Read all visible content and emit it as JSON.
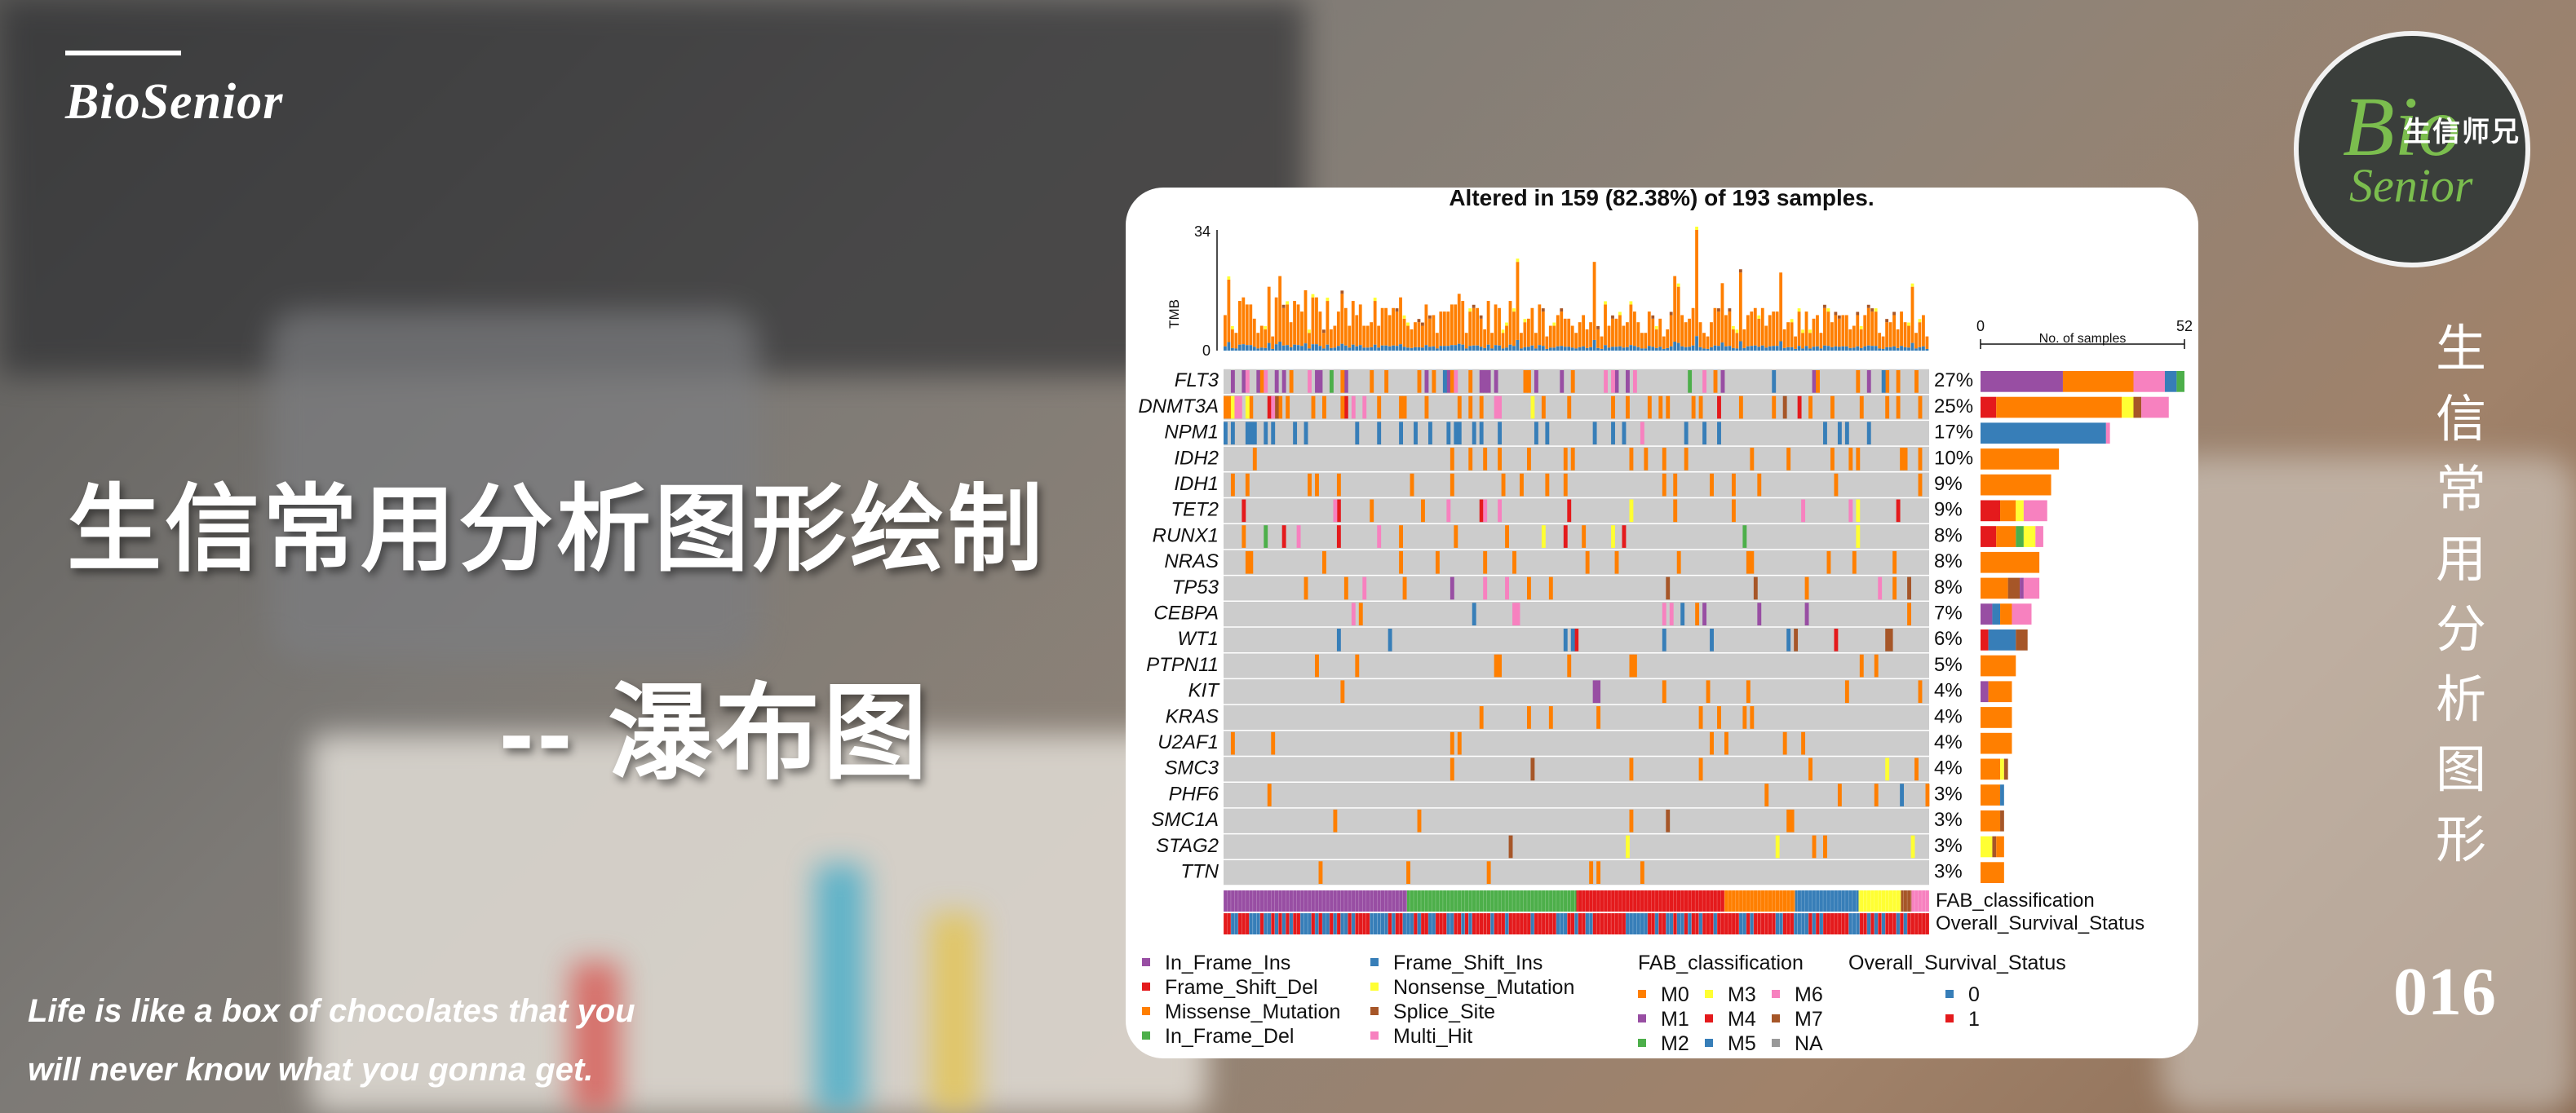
{
  "brand": {
    "name": "BioSenior"
  },
  "main_title": "生信常用分析图形绘制",
  "sub_title": "-- 瀑布图",
  "quote": {
    "line1": "Life is like a box of chocolates that you",
    "line2": "will never know what you gonna get."
  },
  "logo": {
    "bio": "Bio",
    "chinese": "生信师兄",
    "senior": "Senior"
  },
  "vertical_title": [
    "生",
    "信",
    "常",
    "用",
    "分",
    "析",
    "图",
    "形"
  ],
  "episode": "016",
  "colors": {
    "In_Frame_Ins": "#984ea3",
    "Frame_Shift_Del": "#e41a1c",
    "Missense_Mutation": "#ff7f00",
    "In_Frame_Del": "#4daf4a",
    "Frame_Shift_Ins": "#377eb8",
    "Nonsense_Mutation": "#ffff33",
    "Splice_Site": "#a65628",
    "Multi_Hit": "#f781bf",
    "M0": "#ff7f00",
    "M1": "#984ea3",
    "M2": "#4daf4a",
    "M3": "#ffff33",
    "M4": "#e41a1c",
    "M5": "#377eb8",
    "M6": "#f781bf",
    "M7": "#a65628",
    "NA": "#999999",
    "surv0": "#377eb8",
    "surv1": "#e41a1c",
    "empty": "#cccccc"
  },
  "chart_data": {
    "type": "oncoplot",
    "title": "Altered in 159 (82.38%) of 193 samples.",
    "n_samples": 193,
    "tmb": {
      "ylabel": "TMB",
      "ylim": [
        0,
        34
      ],
      "ticks": [
        "0",
        "34"
      ]
    },
    "side_bar": {
      "title": "No. of samples",
      "xlim": [
        0,
        52
      ],
      "ticks": [
        "0",
        "52"
      ]
    },
    "genes": [
      {
        "name": "FLT3",
        "pct": "27%",
        "count": 52,
        "mix": {
          "In_Frame_Ins": 21,
          "Missense_Mutation": 18,
          "Multi_Hit": 8,
          "Frame_Shift_Ins": 3,
          "In_Frame_Del": 2
        }
      },
      {
        "name": "DNMT3A",
        "pct": "25%",
        "count": 48,
        "mix": {
          "Frame_Shift_Del": 4,
          "Missense_Mutation": 32,
          "Nonsense_Mutation": 3,
          "Splice_Site": 2,
          "Multi_Hit": 7
        }
      },
      {
        "name": "NPM1",
        "pct": "17%",
        "count": 33,
        "mix": {
          "Frame_Shift_Ins": 32,
          "Multi_Hit": 1
        }
      },
      {
        "name": "IDH2",
        "pct": "10%",
        "count": 20,
        "mix": {
          "Missense_Mutation": 20
        }
      },
      {
        "name": "IDH1",
        "pct": "9%",
        "count": 18,
        "mix": {
          "Missense_Mutation": 18
        }
      },
      {
        "name": "TET2",
        "pct": "9%",
        "count": 17,
        "mix": {
          "Frame_Shift_Del": 5,
          "Missense_Mutation": 4,
          "Nonsense_Mutation": 2,
          "Multi_Hit": 6
        }
      },
      {
        "name": "RUNX1",
        "pct": "8%",
        "count": 16,
        "mix": {
          "Frame_Shift_Del": 4,
          "Missense_Mutation": 5,
          "In_Frame_Del": 2,
          "Nonsense_Mutation": 3,
          "Multi_Hit": 2
        }
      },
      {
        "name": "NRAS",
        "pct": "8%",
        "count": 15,
        "mix": {
          "Missense_Mutation": 15
        }
      },
      {
        "name": "TP53",
        "pct": "8%",
        "count": 15,
        "mix": {
          "Missense_Mutation": 7,
          "Splice_Site": 3,
          "In_Frame_Ins": 1,
          "Multi_Hit": 4
        }
      },
      {
        "name": "CEBPA",
        "pct": "7%",
        "count": 13,
        "mix": {
          "In_Frame_Ins": 3,
          "Frame_Shift_Ins": 2,
          "Missense_Mutation": 3,
          "Multi_Hit": 5
        }
      },
      {
        "name": "WT1",
        "pct": "6%",
        "count": 12,
        "mix": {
          "Frame_Shift_Del": 2,
          "Frame_Shift_Ins": 7,
          "Splice_Site": 3
        }
      },
      {
        "name": "PTPN11",
        "pct": "5%",
        "count": 9,
        "mix": {
          "Missense_Mutation": 9
        }
      },
      {
        "name": "KIT",
        "pct": "4%",
        "count": 8,
        "mix": {
          "In_Frame_Ins": 2,
          "Missense_Mutation": 6
        }
      },
      {
        "name": "KRAS",
        "pct": "4%",
        "count": 8,
        "mix": {
          "Missense_Mutation": 8
        }
      },
      {
        "name": "U2AF1",
        "pct": "4%",
        "count": 8,
        "mix": {
          "Missense_Mutation": 8
        }
      },
      {
        "name": "SMC3",
        "pct": "4%",
        "count": 7,
        "mix": {
          "Missense_Mutation": 5,
          "Nonsense_Mutation": 1,
          "Splice_Site": 1
        }
      },
      {
        "name": "PHF6",
        "pct": "3%",
        "count": 6,
        "mix": {
          "Missense_Mutation": 5,
          "Frame_Shift_Ins": 1
        }
      },
      {
        "name": "SMC1A",
        "pct": "3%",
        "count": 6,
        "mix": {
          "Missense_Mutation": 5,
          "Splice_Site": 1
        }
      },
      {
        "name": "STAG2",
        "pct": "3%",
        "count": 6,
        "mix": {
          "Nonsense_Mutation": 3,
          "Splice_Site": 1,
          "Missense_Mutation": 2
        }
      },
      {
        "name": "TTN",
        "pct": "3%",
        "count": 6,
        "mix": {
          "Missense_Mutation": 6
        }
      }
    ],
    "annotation_tracks": [
      "FAB_classification",
      "Overall_Survival_Status"
    ],
    "fab_segments": [
      [
        "M1",
        0.26
      ],
      [
        "M2",
        0.24
      ],
      [
        "M4",
        0.21
      ],
      [
        "M0",
        0.1
      ],
      [
        "M5",
        0.09
      ],
      [
        "M3",
        0.06
      ],
      [
        "M7",
        0.015
      ],
      [
        "M6",
        0.025
      ]
    ],
    "legend": {
      "variants": [
        [
          "In_Frame_Ins",
          "Frame_Shift_Ins"
        ],
        [
          "Frame_Shift_Del",
          "Nonsense_Mutation"
        ],
        [
          "Missense_Mutation",
          "Splice_Site"
        ],
        [
          "In_Frame_Del",
          "Multi_Hit"
        ]
      ],
      "fab_title": "FAB_classification",
      "fab": [
        [
          "M0",
          "M3",
          "M6"
        ],
        [
          "M1",
          "M4",
          "M7"
        ],
        [
          "M2",
          "M5",
          "NA"
        ]
      ],
      "surv_title": "Overall_Survival_Status",
      "surv": [
        "0",
        "1"
      ]
    }
  }
}
